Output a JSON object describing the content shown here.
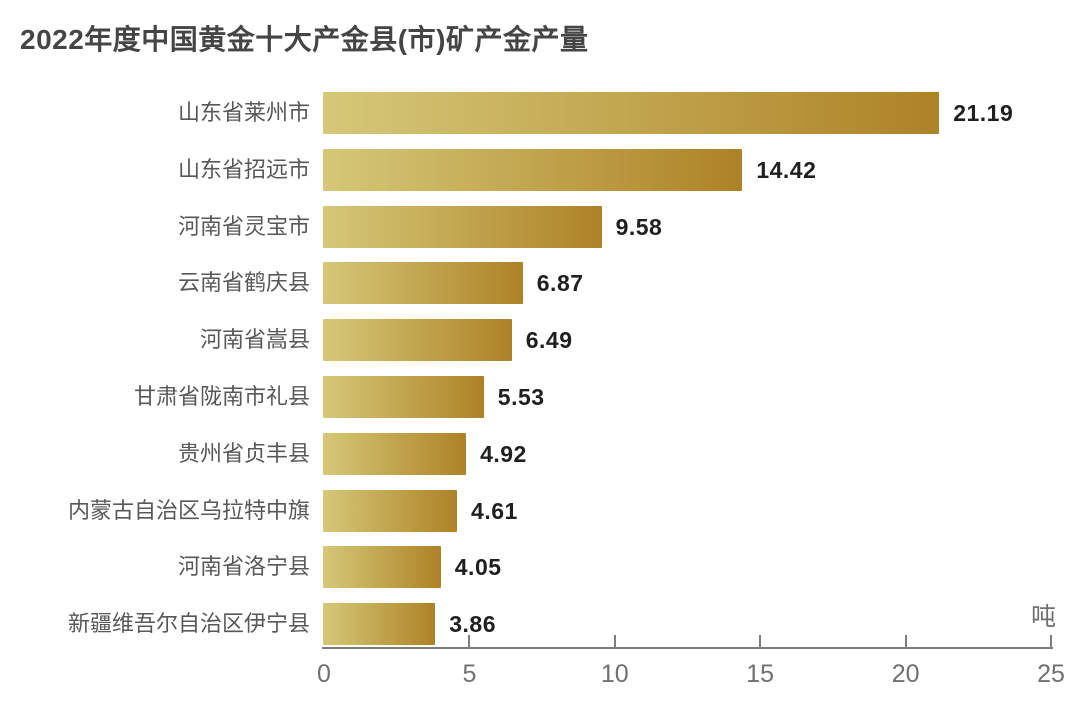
{
  "chart_data": {
    "type": "bar",
    "orientation": "horizontal",
    "title": "2022年度中国黄金十大产金县(市)矿产金产量",
    "categories": [
      "山东省莱州市",
      "山东省招远市",
      "河南省灵宝市",
      "云南省鹤庆县",
      "河南省嵩县",
      "甘肃省陇南市礼县",
      "贵州省贞丰县",
      "内蒙古自治区乌拉特中旗",
      "河南省洛宁县",
      "新疆维吾尔自治区伊宁县"
    ],
    "values": [
      21.19,
      14.42,
      9.58,
      6.87,
      6.49,
      5.53,
      4.92,
      4.61,
      4.05,
      3.86
    ],
    "value_labels": [
      "21.19",
      "14.42",
      "9.58",
      "6.87",
      "6.49",
      "5.53",
      "4.92",
      "4.61",
      "4.05",
      "3.86"
    ],
    "unit": "吨",
    "xlabel": "",
    "ylabel": "",
    "xlim": [
      0,
      25
    ],
    "x_ticks": [
      0,
      5,
      10,
      15,
      20,
      25
    ],
    "grid": false,
    "legend": "none",
    "colors": {
      "bar_gradient_start": "#d5c878",
      "bar_gradient_end": "#ae8226",
      "title": "#454545",
      "category_label": "#595757",
      "value_label": "#211e1e",
      "axis": "#7d7d7d",
      "tick_label": "#717071",
      "background": "#ffffff"
    }
  }
}
